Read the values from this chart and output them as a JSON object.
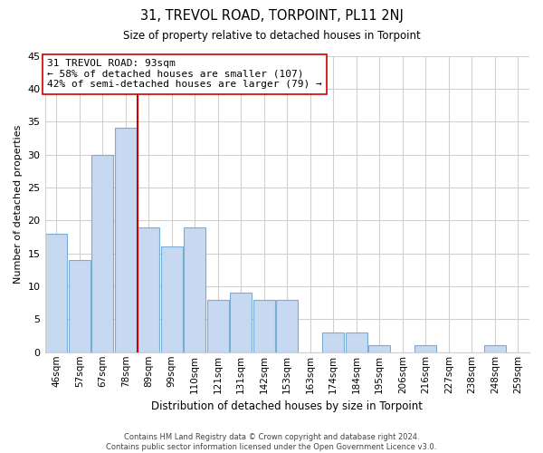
{
  "title": "31, TREVOL ROAD, TORPOINT, PL11 2NJ",
  "subtitle": "Size of property relative to detached houses in Torpoint",
  "xlabel": "Distribution of detached houses by size in Torpoint",
  "ylabel": "Number of detached properties",
  "bar_labels": [
    "46sqm",
    "57sqm",
    "67sqm",
    "78sqm",
    "89sqm",
    "99sqm",
    "110sqm",
    "121sqm",
    "131sqm",
    "142sqm",
    "153sqm",
    "163sqm",
    "174sqm",
    "184sqm",
    "195sqm",
    "206sqm",
    "216sqm",
    "227sqm",
    "238sqm",
    "248sqm",
    "259sqm"
  ],
  "bar_values": [
    18,
    14,
    30,
    34,
    19,
    16,
    19,
    8,
    9,
    8,
    8,
    0,
    3,
    3,
    1,
    0,
    1,
    0,
    0,
    1,
    0
  ],
  "bar_color": "#c6d9f0",
  "bar_edge_color": "#7aadd4",
  "vline_x": 3.5,
  "vline_color": "#cc0000",
  "annotation_title": "31 TREVOL ROAD: 93sqm",
  "annotation_line1": "← 58% of detached houses are smaller (107)",
  "annotation_line2": "42% of semi-detached houses are larger (79) →",
  "annotation_box_color": "#ffffff",
  "annotation_box_edge": "#cc0000",
  "ylim": [
    0,
    45
  ],
  "yticks": [
    0,
    5,
    10,
    15,
    20,
    25,
    30,
    35,
    40,
    45
  ],
  "footer1": "Contains HM Land Registry data © Crown copyright and database right 2024.",
  "footer2": "Contains public sector information licensed under the Open Government Licence v3.0.",
  "bg_color": "#ffffff",
  "grid_color": "#d0d0d0"
}
